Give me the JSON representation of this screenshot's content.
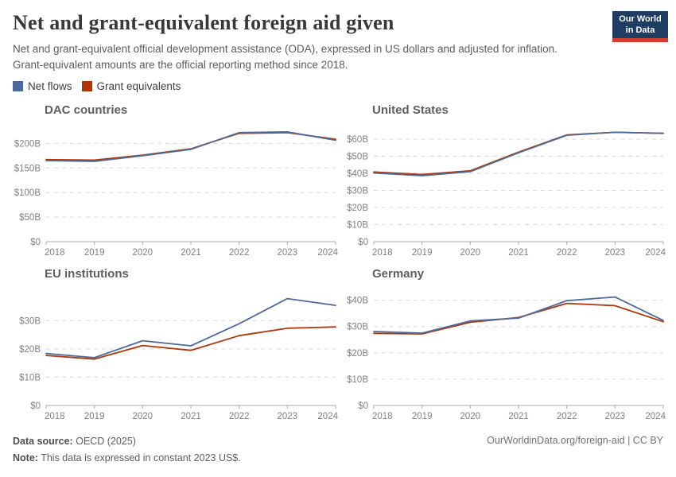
{
  "header": {
    "title": "Net and grant-equivalent foreign aid given",
    "subtitle": "Net and grant-equivalent official development assistance (ODA), expressed in US dollars and adjusted for inflation. Grant-equivalent amounts are the official reporting method since 2018.",
    "logo_line1": "Our World",
    "logo_line2": "in Data",
    "logo_bg_color": "#1d3d63",
    "logo_accent_color": "#d73c2e"
  },
  "legend": {
    "items": [
      {
        "label": "Net flows",
        "color": "#4C6A9C"
      },
      {
        "label": "Grant equivalents",
        "color": "#B13507"
      }
    ]
  },
  "chart_data": [
    {
      "type": "line",
      "title": "DAC countries",
      "x": [
        2018,
        2019,
        2020,
        2021,
        2022,
        2023,
        2024
      ],
      "yticks": [
        0,
        50,
        100,
        150,
        200
      ],
      "ytick_labels": [
        "$0",
        "$50B",
        "$100B",
        "$150B",
        "$200B"
      ],
      "ylim": [
        0,
        233
      ],
      "grid": true,
      "series": [
        {
          "name": "Net flows",
          "color": "#4C6A9C",
          "values": [
            165,
            163.5,
            175,
            188,
            222,
            223.5,
            206.5
          ]
        },
        {
          "name": "Grant equivalents",
          "color": "#B13507",
          "values": [
            167,
            166,
            176,
            189,
            220.5,
            222,
            208.5
          ]
        }
      ]
    },
    {
      "type": "line",
      "title": "United States",
      "x": [
        2018,
        2019,
        2020,
        2021,
        2022,
        2023,
        2024
      ],
      "yticks": [
        0,
        10,
        20,
        30,
        40,
        50,
        60
      ],
      "ytick_labels": [
        "$0",
        "$10B",
        "$20B",
        "$30B",
        "$40B",
        "$50B",
        "$60B"
      ],
      "ylim": [
        0,
        67
      ],
      "grid": true,
      "series": [
        {
          "name": "Net flows",
          "color": "#4C6A9C",
          "values": [
            40.2,
            38.6,
            41,
            52,
            62.3,
            64,
            63.4
          ]
        },
        {
          "name": "Grant equivalents",
          "color": "#B13507",
          "values": [
            40.8,
            39.3,
            41.5,
            52.4,
            62.5,
            64,
            63.4
          ]
        }
      ]
    },
    {
      "type": "line",
      "title": "EU institutions",
      "x": [
        2018,
        2019,
        2020,
        2021,
        2022,
        2023,
        2024
      ],
      "yticks": [
        0,
        10,
        20,
        30
      ],
      "ytick_labels": [
        "$0",
        "$10B",
        "$20B",
        "$30B"
      ],
      "ylim": [
        0,
        40.5
      ],
      "grid": true,
      "series": [
        {
          "name": "Net flows",
          "color": "#4C6A9C",
          "values": [
            18.4,
            16.9,
            22.9,
            21.1,
            28.9,
            37.8,
            35.4
          ]
        },
        {
          "name": "Grant equivalents",
          "color": "#B13507",
          "values": [
            17.7,
            16.4,
            21.2,
            19.5,
            24.7,
            27.3,
            27.8
          ]
        }
      ]
    },
    {
      "type": "line",
      "title": "Germany",
      "x": [
        2018,
        2019,
        2020,
        2021,
        2022,
        2023,
        2024
      ],
      "yticks": [
        0,
        10,
        20,
        30,
        40
      ],
      "ytick_labels": [
        "$0",
        "$10B",
        "$20B",
        "$30B",
        "$40B"
      ],
      "ylim": [
        0,
        43.5
      ],
      "grid": true,
      "series": [
        {
          "name": "Net flows",
          "color": "#4C6A9C",
          "values": [
            28.1,
            27.5,
            32.1,
            33.2,
            39.8,
            41.2,
            32.3
          ]
        },
        {
          "name": "Grant equivalents",
          "color": "#B13507",
          "values": [
            27.4,
            27.2,
            31.6,
            33.4,
            38.8,
            37.9,
            31.8
          ]
        }
      ]
    }
  ],
  "footer": {
    "source_label": "Data source:",
    "source_value": "OECD (2025)",
    "note_label": "Note:",
    "note_value": "This data is expressed in constant 2023 US$.",
    "link": "OurWorldinData.org/foreign-aid | CC BY"
  }
}
